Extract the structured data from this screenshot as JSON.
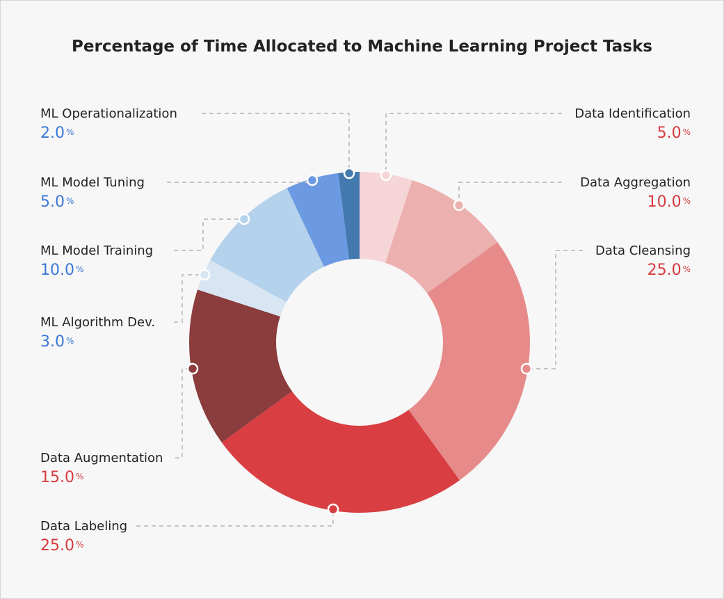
{
  "chart_data": {
    "type": "pie",
    "donut": true,
    "title": "Percentage of Time Allocated to Machine Learning Project Tasks",
    "start_angle": "top, clockwise",
    "slices": [
      {
        "label": "Data Identification",
        "value": 5.0,
        "color": "#f5d5d7",
        "text_color": "#d63a3f"
      },
      {
        "label": "Data Aggregation",
        "value": 10.0,
        "color": "#ecb0ae",
        "text_color": "#d63a3f"
      },
      {
        "label": "Data Cleansing",
        "value": 25.0,
        "color": "#e68b8a",
        "text_color": "#d63a3f"
      },
      {
        "label": "Data Labeling",
        "value": 25.0,
        "color": "#d93e42",
        "text_color": "#d63a3f"
      },
      {
        "label": "Data Augmentation",
        "value": 15.0,
        "color": "#8b3c3d",
        "text_color": "#d63a3f"
      },
      {
        "label": "ML Algorithm Dev.",
        "value": 3.0,
        "color": "#d8e6f3",
        "text_color": "#3a78d8"
      },
      {
        "label": "ML Model Training",
        "value": 10.0,
        "color": "#b5d2ec",
        "text_color": "#3a78d8"
      },
      {
        "label": "ML Model Tuning",
        "value": 5.0,
        "color": "#6c9ae2",
        "text_color": "#3a78d8"
      },
      {
        "label": "ML Operationalization",
        "value": 2.0,
        "color": "#4479b0",
        "text_color": "#3a78d8"
      }
    ],
    "value_suffix": "%"
  }
}
